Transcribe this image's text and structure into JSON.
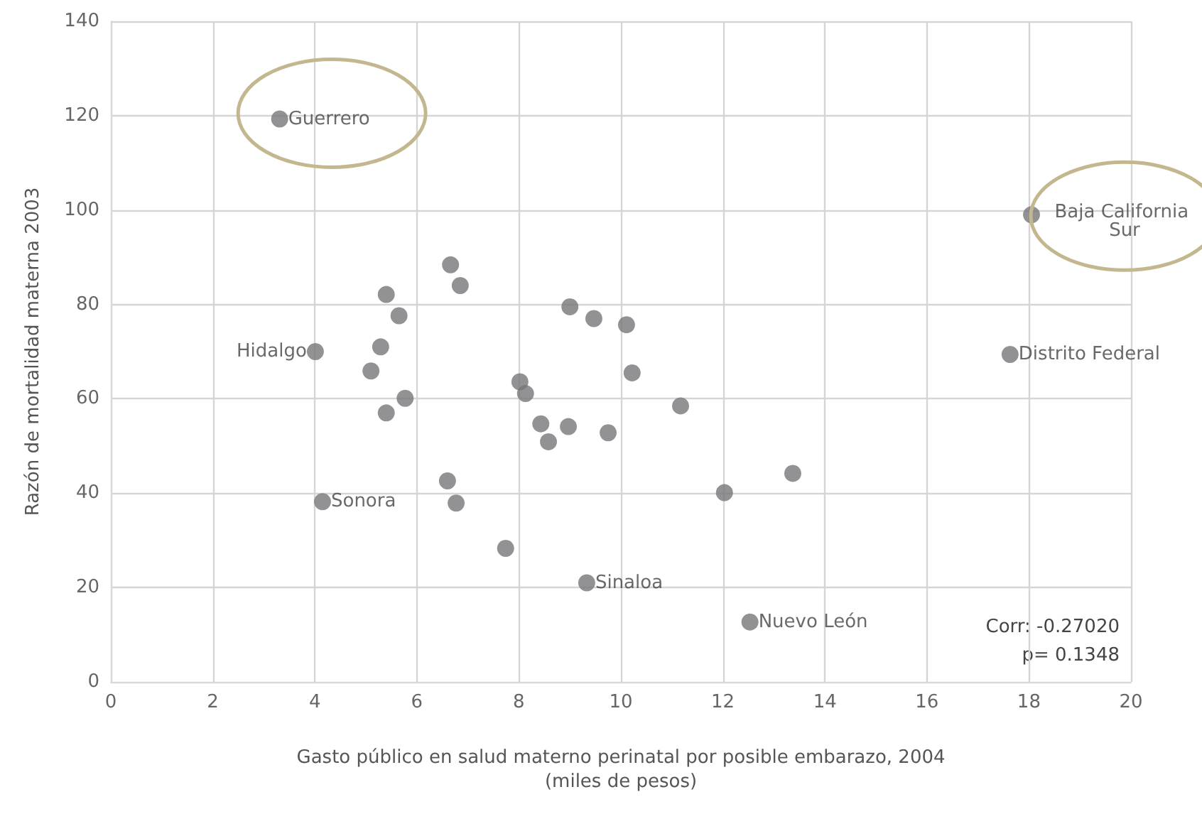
{
  "chart_data": {
    "type": "scatter",
    "xlabel": "Gasto público en salud materno perinatal por posible embarazo, 2004\n(miles de pesos)",
    "ylabel": "Razón de mortalidad materna 2003",
    "x": [
      3.31,
      18.05,
      17.63,
      4.01,
      4.15,
      9.33,
      12.53,
      5.4,
      5.65,
      5.29,
      5.1,
      5.77,
      5.4,
      6.66,
      6.85,
      6.6,
      6.77,
      7.74,
      8.02,
      8.13,
      8.43,
      8.58,
      8.97,
      9.0,
      9.47,
      9.75,
      10.11,
      10.22,
      11.17,
      12.03,
      13.37
    ],
    "values": [
      119.3,
      99.0,
      69.4,
      70,
      38.2,
      21,
      12.7,
      82.1,
      77.6,
      71,
      65.9,
      60.1,
      57.0,
      88.4,
      84,
      42.6,
      37.9,
      28.3,
      63.6,
      61.1,
      54.7,
      50.9,
      54.1,
      79.5,
      77,
      52.8,
      75.7,
      65.5,
      58.5,
      40.1,
      44.2
    ],
    "color": "#77777b",
    "marker": "circle",
    "xlim": [
      0,
      20
    ],
    "xticks": [
      0,
      2,
      4,
      6,
      8,
      10,
      12,
      14,
      16,
      18,
      20
    ],
    "ylim": [
      0,
      140
    ],
    "yticks": [
      0,
      20,
      40,
      60,
      80,
      100,
      120,
      140
    ],
    "grid": true,
    "annotations": [
      {
        "text": "Guerrero",
        "x": 3.31,
        "y": 119.3
      },
      {
        "text": "Baja California Sur",
        "x": 18.05,
        "y": 99.0
      },
      {
        "text": "Distrito Federal",
        "x": 17.63,
        "y": 69.4
      },
      {
        "text": "Hidalgo",
        "x": 4.01,
        "y": 70
      },
      {
        "text": "Sonora",
        "x": 4.15,
        "y": 38.2
      },
      {
        "text": "Sinaloa",
        "x": 9.33,
        "y": 21
      },
      {
        "text": "Nuevo León",
        "x": 12.53,
        "y": 12.7
      },
      "Corr: -0.27020",
      "p= 0.1348"
    ]
  }
}
